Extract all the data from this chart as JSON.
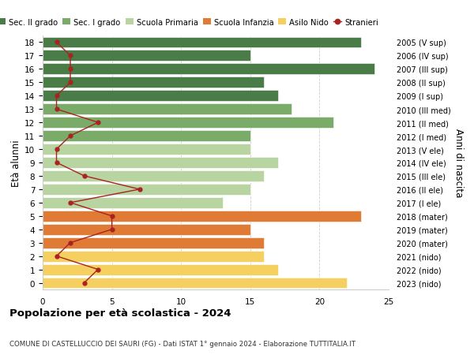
{
  "ages": [
    18,
    17,
    16,
    15,
    14,
    13,
    12,
    11,
    10,
    9,
    8,
    7,
    6,
    5,
    4,
    3,
    2,
    1,
    0
  ],
  "years": [
    "2005 (V sup)",
    "2006 (IV sup)",
    "2007 (III sup)",
    "2008 (II sup)",
    "2009 (I sup)",
    "2010 (III med)",
    "2011 (II med)",
    "2012 (I med)",
    "2013 (V ele)",
    "2014 (IV ele)",
    "2015 (III ele)",
    "2016 (II ele)",
    "2017 (I ele)",
    "2018 (mater)",
    "2019 (mater)",
    "2020 (mater)",
    "2021 (nido)",
    "2022 (nido)",
    "2023 (nido)"
  ],
  "bar_values": [
    23,
    15,
    24,
    16,
    17,
    18,
    21,
    15,
    15,
    17,
    16,
    15,
    13,
    23,
    15,
    16,
    16,
    17,
    22
  ],
  "bar_colors": [
    "#4a7c47",
    "#4a7c47",
    "#4a7c47",
    "#4a7c47",
    "#4a7c47",
    "#7aab68",
    "#7aab68",
    "#7aab68",
    "#b8d4a0",
    "#b8d4a0",
    "#b8d4a0",
    "#b8d4a0",
    "#b8d4a0",
    "#e07b35",
    "#e07b35",
    "#e07b35",
    "#f5d060",
    "#f5d060",
    "#f5d060"
  ],
  "stranieri": [
    1,
    2,
    2,
    2,
    1,
    1,
    4,
    2,
    1,
    1,
    3,
    7,
    2,
    5,
    5,
    2,
    1,
    4,
    3
  ],
  "stranieri_color": "#aa2222",
  "legend_labels": [
    "Sec. II grado",
    "Sec. I grado",
    "Scuola Primaria",
    "Scuola Infanzia",
    "Asilo Nido",
    "Stranieri"
  ],
  "legend_colors": [
    "#4a7c47",
    "#7aab68",
    "#b8d4a0",
    "#e07b35",
    "#f5d060",
    "#aa2222"
  ],
  "ylabel_left": "Età alunni",
  "ylabel_right": "Anni di nascita",
  "xlim": [
    0,
    25
  ],
  "xticks": [
    0,
    5,
    10,
    15,
    20,
    25
  ],
  "title": "Popolazione per età scolastica - 2024",
  "subtitle": "COMUNE DI CASTELLUCCIO DEI SAURI (FG) - Dati ISTAT 1° gennaio 2024 - Elaborazione TUTTITALIA.IT",
  "background_color": "#ffffff",
  "grid_color": "#cccccc"
}
